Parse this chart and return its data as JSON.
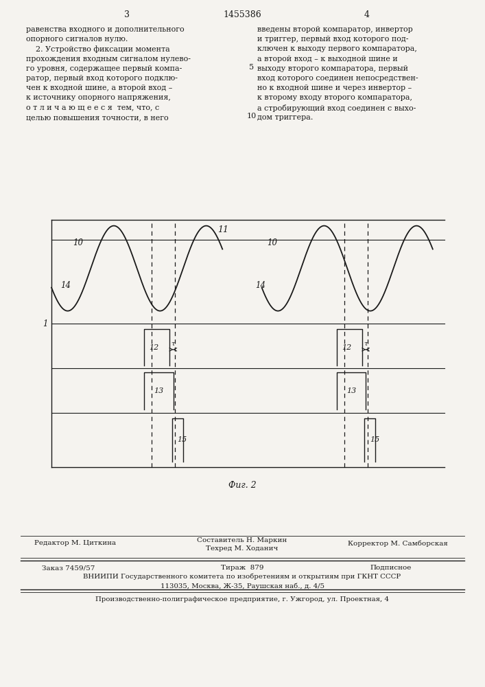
{
  "page_number_left": "3",
  "patent_number": "1455386",
  "page_number_right": "4",
  "bg_color": "#f5f3ef",
  "text_color": "#1a1a1a",
  "text_left": [
    "равенства входного и дополнительного",
    "опорного сигналов нулю.",
    "    2. Устройство фиксации момента",
    "прохождения входным сигналом нулево-",
    "го уровня, содержащее первый компа-",
    "ратор, первый вход которого подклю-",
    "чен к входной шине, а второй вход –",
    "к источнику опорного напряжения,",
    "о т л и ч а ю щ е е с я  тем, что, с",
    "целью повышения точности, в него"
  ],
  "text_right": [
    "введены второй компаратор, инвертор",
    "и триггер, первый вход которого под-",
    "ключен к выходу первого компаратора,",
    "а второй вход – к выходной шине и",
    "выходу второго компаратора, первый",
    "вход которого соединен непосредствен-",
    "но к входной шине и через инвертор –",
    "к второму входу второго компаратора,",
    "а стробирующий вход соединен с выхо-",
    "дом триггера."
  ],
  "fig_caption": "Фиг. 2",
  "footer_line1_left": "Редактор М. Циткина",
  "footer_line1_center_top": "Составитель Н. Маркин",
  "footer_line1_center_bot": "Техред М. Ходанич",
  "footer_line1_right": "Корректор М. Самборская",
  "footer_line2_col1": "Заказ 7459/57",
  "footer_line2_col2": "Тираж  879",
  "footer_line2_col3": "Подписное",
  "footer_line3": "ВНИИПИ Государственного комитета по изобретениям и открытиям при ГКНТ СССР",
  "footer_line4": "113035, Москва, Ж-35, Раушская наб., д. 4/5",
  "footer_line5": "Производственно-полиграфическое предприятие, г. Ужгород, ул. Проектная, 4"
}
